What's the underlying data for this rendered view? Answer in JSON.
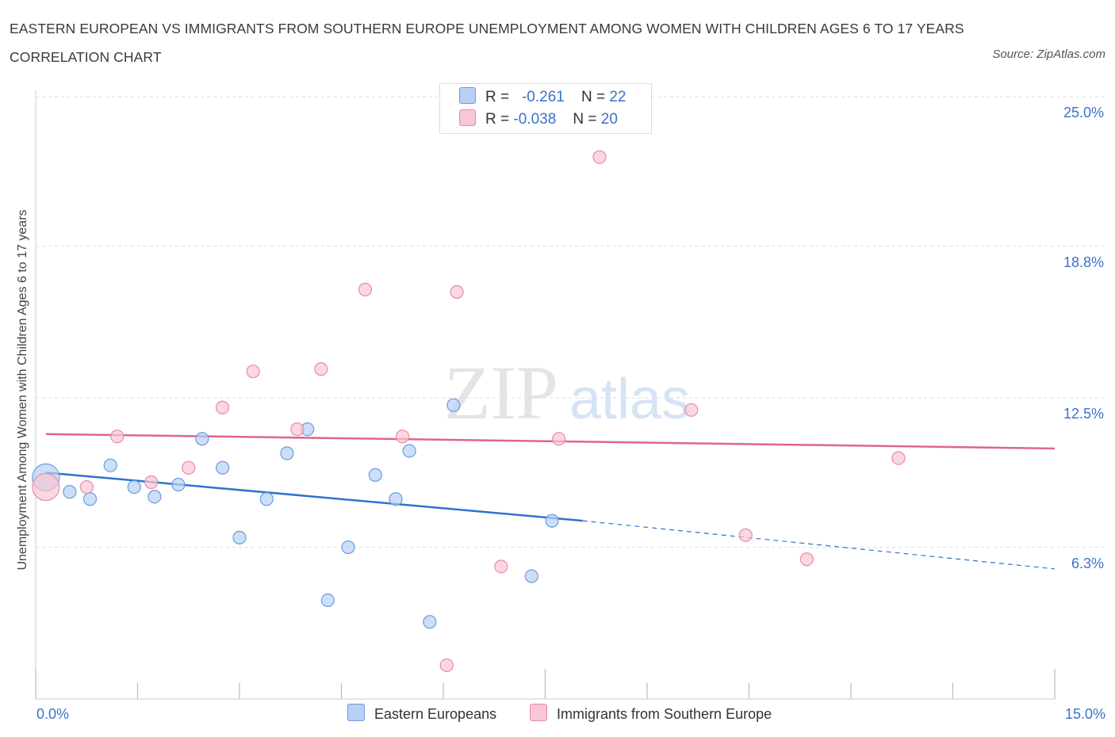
{
  "title": "EASTERN EUROPEAN VS IMMIGRANTS FROM SOUTHERN EUROPE UNEMPLOYMENT AMONG WOMEN WITH CHILDREN AGES 6 TO 17 YEARS CORRELATION CHART",
  "source": "Source: ZipAtlas.com",
  "watermark": {
    "zip": "ZIP",
    "atlas": "atlas"
  },
  "legend_stats": [
    {
      "r_label": "R =",
      "r_value": "-0.261",
      "n_label": "N =",
      "n_value": "22"
    },
    {
      "r_label": "R =",
      "r_value": "-0.038",
      "n_label": "N =",
      "n_value": "20"
    }
  ],
  "colors": {
    "blue_fill": "#b8d0f5",
    "blue_stroke": "#6b9be0",
    "blue_line": "#2f72cf",
    "pink_fill": "#f8c6d6",
    "pink_stroke": "#e88aa8",
    "pink_line": "#e0648d",
    "tick_text": "#3b72c7",
    "grid": "#dddddd"
  },
  "chart_data": {
    "type": "scatter",
    "ylabel": "Unemployment Among Women with Children Ages 6 to 17 years",
    "xlim": [
      0,
      15
    ],
    "ylim": [
      0,
      25.6
    ],
    "y_ticks": [
      {
        "value": 6.3,
        "label": "6.3%"
      },
      {
        "value": 12.5,
        "label": "12.5%"
      },
      {
        "value": 18.8,
        "label": "18.8%"
      },
      {
        "value": 25.0,
        "label": "25.0%"
      }
    ],
    "x_tick_labels": [
      {
        "value": 0,
        "label": "0.0%"
      },
      {
        "value": 15,
        "label": "15.0%"
      }
    ],
    "grid": true,
    "legend_position": "bottom",
    "series": [
      {
        "name": "Eastern Europeans",
        "color": "blue",
        "points": [
          {
            "x": 0.15,
            "y": 9.2,
            "size": "large"
          },
          {
            "x": 0.5,
            "y": 8.6
          },
          {
            "x": 0.8,
            "y": 8.3
          },
          {
            "x": 1.1,
            "y": 9.7
          },
          {
            "x": 1.45,
            "y": 8.8
          },
          {
            "x": 1.75,
            "y": 8.4
          },
          {
            "x": 2.1,
            "y": 8.9
          },
          {
            "x": 2.45,
            "y": 10.8
          },
          {
            "x": 2.75,
            "y": 9.6
          },
          {
            "x": 3.0,
            "y": 6.7
          },
          {
            "x": 3.4,
            "y": 8.3
          },
          {
            "x": 3.7,
            "y": 10.2
          },
          {
            "x": 4.0,
            "y": 11.2
          },
          {
            "x": 4.3,
            "y": 4.1
          },
          {
            "x": 4.6,
            "y": 6.3
          },
          {
            "x": 5.0,
            "y": 9.3
          },
          {
            "x": 5.3,
            "y": 8.3
          },
          {
            "x": 5.5,
            "y": 10.3
          },
          {
            "x": 5.8,
            "y": 3.2
          },
          {
            "x": 6.15,
            "y": 12.2
          },
          {
            "x": 7.3,
            "y": 5.1
          },
          {
            "x": 7.6,
            "y": 7.4
          }
        ],
        "trend": {
          "x0": 0.15,
          "y0": 9.4,
          "x1": 8.05,
          "y1": 7.4,
          "dashed_to_x": 15,
          "dashed_to_y": 5.4
        }
      },
      {
        "name": "Immigrants from Southern Europe",
        "color": "pink",
        "points": [
          {
            "x": 0.15,
            "y": 8.8,
            "size": "large"
          },
          {
            "x": 0.75,
            "y": 8.8
          },
          {
            "x": 1.2,
            "y": 10.9
          },
          {
            "x": 1.7,
            "y": 9.0
          },
          {
            "x": 2.25,
            "y": 9.6
          },
          {
            "x": 2.75,
            "y": 12.1
          },
          {
            "x": 3.2,
            "y": 13.6
          },
          {
            "x": 3.85,
            "y": 11.2
          },
          {
            "x": 4.2,
            "y": 13.7
          },
          {
            "x": 4.85,
            "y": 17.0
          },
          {
            "x": 5.4,
            "y": 10.9
          },
          {
            "x": 6.05,
            "y": 1.4
          },
          {
            "x": 6.2,
            "y": 16.9
          },
          {
            "x": 6.85,
            "y": 5.5
          },
          {
            "x": 7.7,
            "y": 10.8
          },
          {
            "x": 8.3,
            "y": 22.5
          },
          {
            "x": 9.65,
            "y": 12.0
          },
          {
            "x": 10.45,
            "y": 6.8
          },
          {
            "x": 11.35,
            "y": 5.8
          },
          {
            "x": 12.7,
            "y": 10.0
          }
        ],
        "trend": {
          "x0": 0.15,
          "y0": 11.0,
          "x1": 15,
          "y1": 10.4
        }
      }
    ]
  }
}
